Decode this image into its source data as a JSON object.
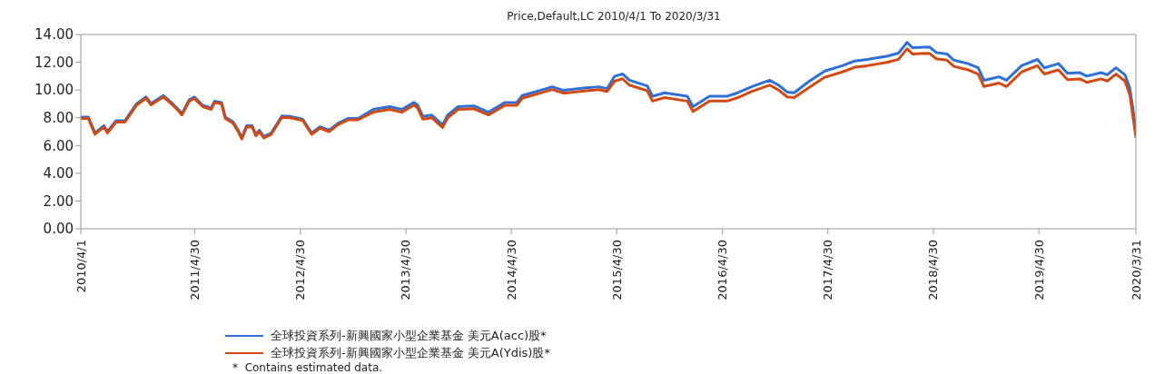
{
  "chart_data": {
    "type": "line",
    "title": "Price,Default,LC 2010/4/1 To 2020/3/31",
    "x": [
      "2010-04-01",
      "2010-04-27",
      "2010-05-20",
      "2010-06-20",
      "2010-07-02",
      "2010-08-01",
      "2010-09-01",
      "2010-10-12",
      "2010-11-13",
      "2010-11-30",
      "2011-01-12",
      "2011-02-12",
      "2011-03-06",
      "2011-03-17",
      "2011-04-11",
      "2011-04-29",
      "2011-05-28",
      "2011-06-26",
      "2011-07-08",
      "2011-08-01",
      "2011-08-14",
      "2011-09-10",
      "2011-09-28",
      "2011-10-10",
      "2011-10-27",
      "2011-11-15",
      "2011-11-28",
      "2011-12-10",
      "2011-12-25",
      "2012-01-20",
      "2012-02-26",
      "2012-03-25",
      "2012-05-08",
      "2012-06-08",
      "2012-07-07",
      "2012-08-07",
      "2012-09-07",
      "2012-10-13",
      "2012-11-16",
      "2013-01-07",
      "2013-03-05",
      "2013-04-16",
      "2013-05-28",
      "2013-06-10",
      "2013-06-28",
      "2013-07-28",
      "2013-09-04",
      "2013-09-22",
      "2013-10-28",
      "2013-12-22",
      "2014-02-10",
      "2014-04-08",
      "2014-05-19",
      "2014-06-07",
      "2014-08-07",
      "2014-09-19",
      "2014-10-28",
      "2015-01-13",
      "2015-02-28",
      "2015-03-28",
      "2015-04-22",
      "2015-05-20",
      "2015-06-13",
      "2015-08-13",
      "2015-09-01",
      "2015-10-13",
      "2015-12-30",
      "2016-01-19",
      "2016-03-16",
      "2016-05-16",
      "2016-06-22",
      "2016-08-10",
      "2016-10-10",
      "2016-11-10",
      "2016-12-10",
      "2017-01-03",
      "2017-02-22",
      "2017-04-19",
      "2017-06-19",
      "2017-08-01",
      "2017-09-13",
      "2017-11-23",
      "2017-12-30",
      "2018-01-29",
      "2018-02-16",
      "2018-04-16",
      "2018-05-10",
      "2018-06-16",
      "2018-07-10",
      "2018-08-28",
      "2018-10-02",
      "2018-10-22",
      "2018-12-13",
      "2019-01-08",
      "2019-03-01",
      "2019-04-25",
      "2019-05-19",
      "2019-07-07",
      "2019-08-07",
      "2019-09-19",
      "2019-10-13",
      "2019-12-01",
      "2019-12-23",
      "2020-01-22",
      "2020-02-22",
      "2020-03-10",
      "2020-03-31"
    ],
    "series": [
      {
        "name": "全球投資系列-新興國家小型企業基金 美元A(acc)股*",
        "color": "#2f6fd6",
        "values": [
          8.05,
          8.05,
          6.91,
          7.43,
          7.0,
          7.79,
          7.79,
          9.03,
          9.5,
          9.03,
          9.6,
          9.03,
          8.57,
          8.3,
          9.29,
          9.49,
          8.9,
          8.7,
          9.2,
          9.1,
          8.05,
          7.7,
          7.09,
          6.57,
          7.43,
          7.43,
          6.8,
          7.1,
          6.65,
          6.9,
          8.13,
          8.1,
          7.9,
          6.9,
          7.35,
          7.1,
          7.6,
          7.95,
          7.95,
          8.6,
          8.8,
          8.6,
          9.11,
          8.9,
          8.1,
          8.2,
          7.5,
          8.2,
          8.8,
          8.85,
          8.4,
          9.1,
          9.1,
          9.6,
          9.97,
          10.23,
          9.97,
          10.15,
          10.23,
          10.1,
          10.98,
          11.16,
          10.7,
          10.3,
          9.55,
          9.8,
          9.55,
          8.8,
          9.55,
          9.55,
          9.8,
          10.25,
          10.7,
          10.35,
          9.85,
          9.8,
          10.6,
          11.37,
          11.75,
          12.09,
          12.2,
          12.45,
          12.66,
          13.43,
          13.05,
          13.1,
          12.7,
          12.6,
          12.15,
          11.9,
          11.6,
          10.7,
          10.95,
          10.7,
          11.75,
          12.2,
          11.6,
          11.9,
          11.2,
          11.25,
          11.0,
          11.25,
          11.1,
          11.6,
          11.1,
          10.1,
          7.2
        ]
      },
      {
        "name": "全球投資系列-新興國家小型企業基金 美元A(Ydis)股*",
        "color": "#d24a12",
        "values": [
          7.95,
          7.95,
          6.81,
          7.33,
          6.9,
          7.69,
          7.69,
          8.93,
          9.4,
          8.93,
          9.5,
          8.93,
          8.47,
          8.2,
          9.19,
          9.39,
          8.8,
          8.6,
          9.1,
          9.0,
          7.95,
          7.6,
          6.99,
          6.47,
          7.33,
          7.33,
          6.7,
          7.0,
          6.55,
          6.8,
          8.03,
          8.0,
          7.8,
          6.8,
          7.25,
          7.0,
          7.5,
          7.85,
          7.85,
          8.4,
          8.6,
          8.4,
          8.91,
          8.7,
          7.9,
          8.0,
          7.3,
          8.0,
          8.6,
          8.65,
          8.2,
          8.9,
          8.9,
          9.4,
          9.77,
          10.03,
          9.77,
          9.95,
          10.03,
          9.9,
          10.63,
          10.81,
          10.35,
          9.95,
          9.2,
          9.45,
          9.2,
          8.45,
          9.2,
          9.2,
          9.45,
          9.9,
          10.35,
          10.0,
          9.5,
          9.45,
          10.15,
          10.92,
          11.3,
          11.64,
          11.75,
          12.0,
          12.21,
          12.98,
          12.6,
          12.65,
          12.25,
          12.15,
          11.7,
          11.45,
          11.15,
          10.25,
          10.5,
          10.25,
          11.3,
          11.75,
          11.15,
          11.45,
          10.75,
          10.8,
          10.55,
          10.8,
          10.65,
          11.15,
          10.65,
          9.65,
          6.57
        ]
      }
    ],
    "xlim": [
      "2010-04-01",
      "2020-03-31"
    ],
    "xticks": [
      {
        "value": "2010-04-01",
        "label": "2010/4/1"
      },
      {
        "value": "2011-04-30",
        "label": "2011/4/30"
      },
      {
        "value": "2012-04-30",
        "label": "2012/4/30"
      },
      {
        "value": "2013-04-30",
        "label": "2013/4/30"
      },
      {
        "value": "2014-04-30",
        "label": "2014/4/30"
      },
      {
        "value": "2015-04-30",
        "label": "2015/4/30"
      },
      {
        "value": "2016-04-30",
        "label": "2016/4/30"
      },
      {
        "value": "2017-04-30",
        "label": "2017/4/30"
      },
      {
        "value": "2018-04-30",
        "label": "2018/4/30"
      },
      {
        "value": "2019-04-30",
        "label": "2019/4/30"
      },
      {
        "value": "2020-03-31",
        "label": "2020/3/31"
      }
    ],
    "ylim": [
      0,
      14
    ],
    "yticks": [
      {
        "value": 0,
        "label": "0.00"
      },
      {
        "value": 2,
        "label": "2.00"
      },
      {
        "value": 4,
        "label": "4.00"
      },
      {
        "value": 6,
        "label": "6.00"
      },
      {
        "value": 8,
        "label": "8.00"
      },
      {
        "value": 10,
        "label": "10.00"
      },
      {
        "value": 12,
        "label": "12.00"
      },
      {
        "value": 14,
        "label": "14.00"
      }
    ],
    "grid": false,
    "legend": "bottom",
    "marker": "none",
    "line_style": "solid",
    "annotations": [
      "*  Contains estimated data."
    ]
  }
}
